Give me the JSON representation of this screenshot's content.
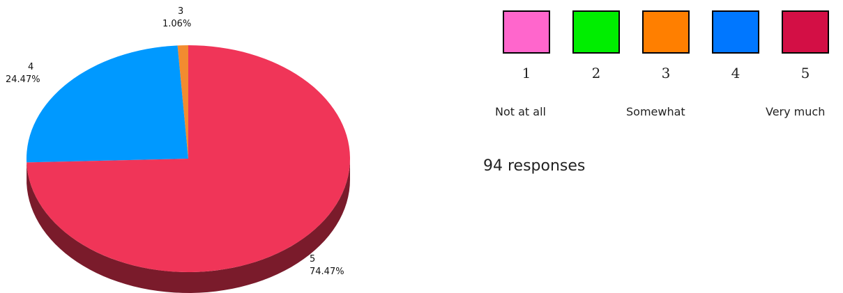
{
  "chart_data": {
    "type": "pie",
    "slices": [
      {
        "label": "3",
        "value": 1.06,
        "percent_label": "1.06%",
        "color": "#F28B30",
        "side_color": "#9A5A1E"
      },
      {
        "label": "4",
        "value": 24.47,
        "percent_label": "24.47%",
        "color": "#0099FF",
        "side_color": "#005A99"
      },
      {
        "label": "5",
        "value": 74.47,
        "percent_label": "74.47%",
        "color": "#F03558",
        "side_color": "#7A1B2B"
      }
    ]
  },
  "legend": {
    "items": [
      {
        "number": "1",
        "color": "#FF66CC"
      },
      {
        "number": "2",
        "color": "#00EE00"
      },
      {
        "number": "3",
        "color": "#FF7F00"
      },
      {
        "number": "4",
        "color": "#0077FF"
      },
      {
        "number": "5",
        "color": "#D30F45"
      }
    ],
    "scale_labels": [
      "Not at all",
      "Somewhat",
      "Very much"
    ]
  },
  "responses_text": "94 responses"
}
